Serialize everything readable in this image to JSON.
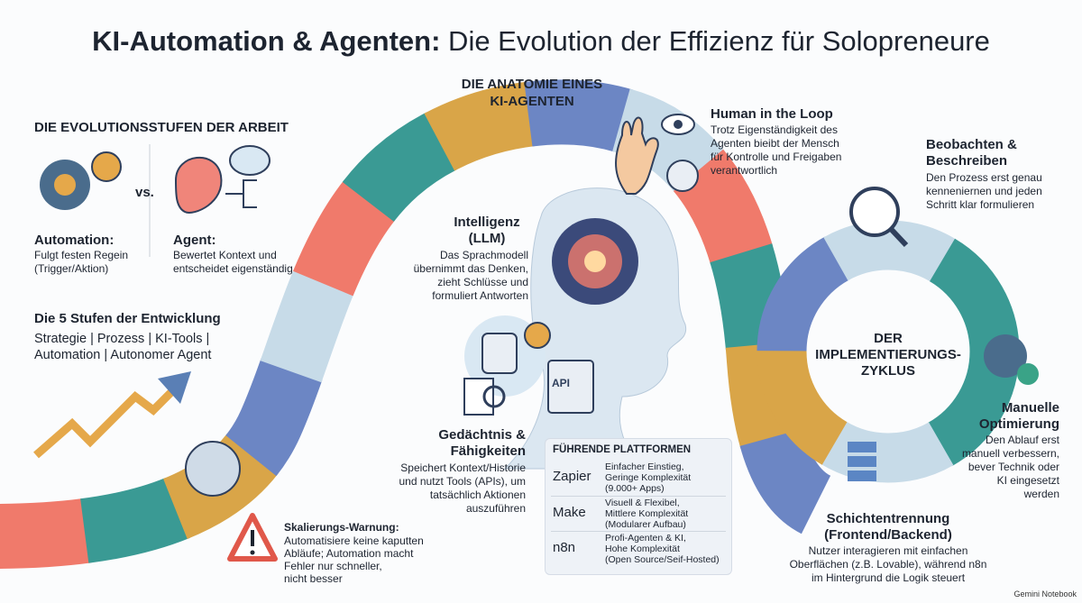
{
  "title": {
    "bold": "KI-Automation & Agenten:",
    "rest": " Die Evolution der Effizienz für Solopreneure"
  },
  "left": {
    "heading": "DIE EVOLUTIONSSTUFEN DER ARBEIT",
    "vs": "vs.",
    "automation": {
      "title": "Automation:",
      "desc": [
        "Fulgt festen Regein",
        "(Trigger/Aktion)"
      ]
    },
    "agent": {
      "title": "Agent:",
      "desc": [
        "Bewertet Kontext und",
        "entscheidet eigenständig"
      ]
    },
    "stages_title": "Die 5 Stufen der Entwicklung",
    "stages": [
      "Strategie",
      "Prozess",
      "KI-Tools",
      "Automation",
      "Autonomer Agent"
    ],
    "separator": "|",
    "warning": {
      "title": "Skalierungs-Warnung:",
      "desc": [
        "Automatisiere keine kaputten",
        "Abläufe; Automation macht",
        "Fehler nur schneller,",
        "nicht besser"
      ]
    }
  },
  "anatomy": {
    "title": [
      "DIE ANATOMIE EINES",
      "KI-AGENTEN"
    ],
    "human": {
      "title": "Human in the Loop",
      "desc": [
        "Trotz Eigenständigkeit des",
        "Agenten bieibt der Mensch",
        "für Kontrolle und Freigaben",
        "verantwortlich"
      ]
    },
    "intelligence": {
      "title": [
        "Intelligenz",
        "(LLM)"
      ],
      "desc": [
        "Das Sprachmodell",
        "übernimmt das Denken,",
        "zieht Schlüsse und",
        "formuliert Antworten"
      ]
    },
    "memory": {
      "title": [
        "Gedächtnis &",
        "Fähigkeiten"
      ],
      "desc": [
        "Speichert Kontext/Historie",
        "und nutzt Tools (APIs), um",
        "tatsächlich Aktionen",
        "auszuführen"
      ]
    },
    "api_icon": "API"
  },
  "platforms": {
    "title": "FÜHRENDE PLATTFORMEN",
    "rows": [
      {
        "name": "Zapier",
        "desc": [
          "Einfacher Einstieg,",
          "Geringe Komplexität",
          "(9.000+ Apps)"
        ]
      },
      {
        "name": "Make",
        "desc": [
          "Visuell & Flexibel,",
          "Mittlere Komplexität",
          "(Modularer Aufbau)"
        ]
      },
      {
        "name": "n8n",
        "desc": [
          "Profi-Agenten & KI,",
          "Hohe Komplexität",
          "(Open Source/Seif-Hosted)"
        ]
      }
    ]
  },
  "cycle": {
    "title": [
      "DER",
      "IMPLEMENTIERUNGS-",
      "ZYKLUS"
    ],
    "observe": {
      "title": [
        "Beobachten &",
        "Beschreiben"
      ],
      "desc": [
        "Den Prozess erst genau",
        "kenneniernen und jeden",
        "Schritt klar formulieren"
      ]
    },
    "optimize": {
      "title": [
        "Manuelle",
        "Optimierung"
      ],
      "desc": [
        "Den Ablauf erst",
        "manuell verbessern,",
        "bever Technik oder",
        "KI eingesetzt",
        "werden"
      ]
    },
    "layers": {
      "title": [
        "Schichtentrennung",
        "(Frontend/Backend)"
      ],
      "desc": [
        "Nutzer interagieren mit einfachen",
        "Oberflächen (z.B. Lovable), während n8n",
        "im Hintergrund die Logik steuert"
      ]
    }
  },
  "footer": "Gemini Notebook"
}
